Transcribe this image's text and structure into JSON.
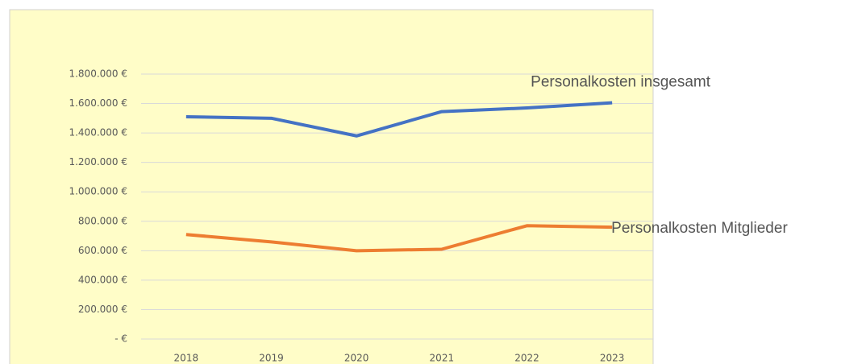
{
  "chart_data": {
    "type": "line",
    "categories": [
      "2018",
      "2019",
      "2020",
      "2021",
      "2022",
      "2023"
    ],
    "series": [
      {
        "name": "Personalkosten insgesamt",
        "color": "#4472c4",
        "values": [
          1510000,
          1500000,
          1380000,
          1545000,
          1570000,
          1605000
        ]
      },
      {
        "name": "Personalkosten Mitglieder",
        "color": "#ed7d31",
        "values": [
          710000,
          660000,
          600000,
          610000,
          770000,
          760000
        ]
      }
    ],
    "ylim": [
      0,
      1800000
    ],
    "yticks": [
      {
        "value": 0,
        "label": "-  €"
      },
      {
        "value": 200000,
        "label": "200.000 €"
      },
      {
        "value": 400000,
        "label": "400.000 €"
      },
      {
        "value": 600000,
        "label": "600.000 €"
      },
      {
        "value": 800000,
        "label": "800.000 €"
      },
      {
        "value": 1000000,
        "label": "1.000.000 €"
      },
      {
        "value": 1200000,
        "label": "1.200.000 €"
      },
      {
        "value": 1400000,
        "label": "1.400.000 €"
      },
      {
        "value": 1600000,
        "label": "1.600.000 €"
      },
      {
        "value": 1800000,
        "label": "1.800.000 €"
      }
    ],
    "grid": true
  }
}
